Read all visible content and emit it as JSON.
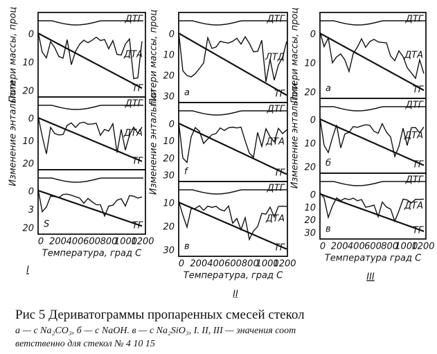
{
  "figure": {
    "panels": [
      {
        "numeral": "I",
        "x_ticks": [
          "0",
          "200",
          "400",
          "600",
          "800",
          "1000",
          "1200"
        ],
        "x_label": "Температура, град С",
        "y_labels": [
          "Потери массы, проц",
          "Изменение энтальпии"
        ],
        "subplots": [
          {
            "letter": "",
            "curves": [
              "ДТГ",
              "ДТА",
              "ТГ"
            ],
            "y_ticks": [
              "0",
              "10",
              "20"
            ]
          },
          {
            "letter": "",
            "curves": [
              "ДТГ",
              "ДТА",
              "ТГ"
            ],
            "y_ticks": [
              "0",
              "10",
              "20"
            ]
          },
          {
            "letter": "S",
            "curves": [
              "ТГ"
            ],
            "y_ticks": [
              "0",
              "3",
              "20"
            ]
          }
        ]
      },
      {
        "numeral": "II",
        "x_ticks": [
          "0",
          "200",
          "400",
          "600",
          "800",
          "1000",
          "1200"
        ],
        "x_label": "Температура, град С",
        "y_labels": [
          "Потери массы, проц",
          "Изменение энтальпии"
        ],
        "subplots": [
          {
            "letter": "а",
            "curves": [
              "ДТГ",
              "ЛТД",
              "ТГ"
            ],
            "y_ticks": [
              "0",
              "10",
              "20",
              "30"
            ]
          },
          {
            "letter": "f",
            "curves": [
              "ДТГ",
              "ДТА",
              "ТГ"
            ],
            "y_ticks": [
              "0",
              "10",
              "20",
              "30"
            ]
          },
          {
            "letter": "в",
            "curves": [
              "ДТГ",
              "ДТА",
              "ТГ"
            ],
            "y_ticks": [
              "10",
              "20",
              "30"
            ]
          }
        ]
      },
      {
        "numeral": "III",
        "x_ticks": [
          "0",
          "200",
          "400",
          "600",
          "800",
          "1000",
          "1200"
        ],
        "x_label": "Температура град С",
        "y_labels": [
          "Потери массы, проц",
          "Изменение энтальпии"
        ],
        "subplots": [
          {
            "letter": "а",
            "curves": [
              "ДТГ",
              "ДТА",
              "ТГ"
            ],
            "y_ticks": [
              "0",
              "10",
              "20"
            ]
          },
          {
            "letter": "б",
            "curves": [
              "ДТГ",
              "ДТА",
              "ТГ"
            ],
            "y_ticks": [
              "0",
              "10",
              "20"
            ]
          },
          {
            "letter": "в",
            "curves": [
              "ДТГ",
              "ДТА",
              "ТГ"
            ],
            "y_ticks": [
              "0",
              "10",
              "20",
              "30"
            ]
          }
        ]
      }
    ]
  },
  "caption": {
    "title": "Рис 5 Дериватограммы пропаренных смесей стекол",
    "line1": "а — с Na₂CO₃, б — с NaOH. в — с Na₂SiO₃, I. II, III — значения соот",
    "line2": "ветственно для стекол № 4 10 15"
  }
}
